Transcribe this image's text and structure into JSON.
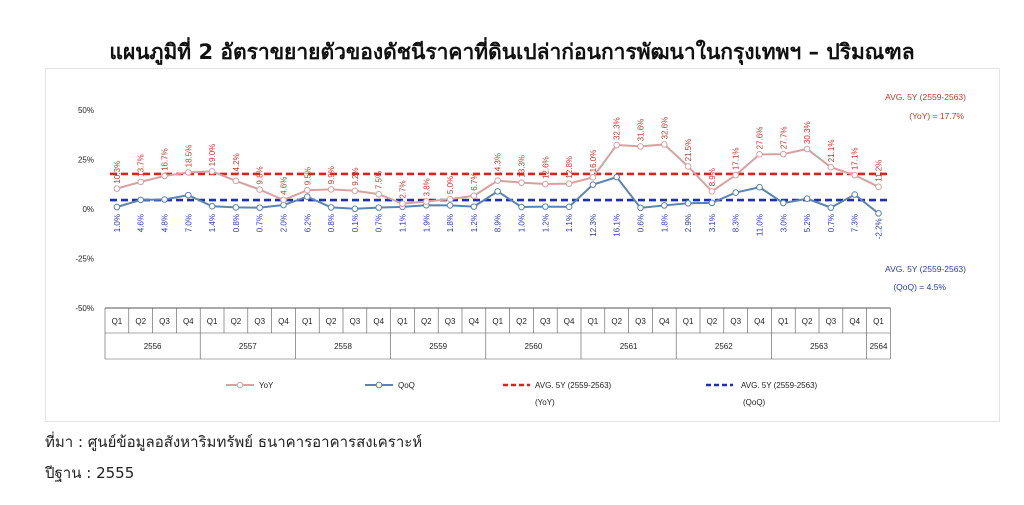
{
  "title": "แผนภูมิที่ 2 อัตราขยายตัวของดัชนีราคาที่ดินเปล่าก่อนการพัฒนาในกรุงเทพฯ – ปริมณฑล",
  "source_note": "ที่มา : ศูนย์ข้อมูลอสังหาริมทรัพย์ ธนาคารอาคารสงเคราะห์",
  "base_year_note": "ปีฐาน : 2555",
  "colors": {
    "yoy": "#d9a0a0",
    "qoq": "#5b84b0",
    "avg_yoy": "#e02020",
    "avg_qoq": "#1f2fb0",
    "yoy_label": "#c0392b",
    "qoq_label": "#2a3ca8"
  },
  "chart_data": {
    "type": "line",
    "ylim": [
      -50,
      50
    ],
    "yticks": [
      "50%",
      "25%",
      "0%",
      "-25%",
      "-50%"
    ],
    "ytick_values": [
      50,
      25,
      0,
      -25,
      -50
    ],
    "quarters": [
      "Q1",
      "Q2",
      "Q3",
      "Q4",
      "Q1",
      "Q2",
      "Q3",
      "Q4",
      "Q1",
      "Q2",
      "Q3",
      "Q4",
      "Q1",
      "Q2",
      "Q3",
      "Q4",
      "Q1",
      "Q2",
      "Q3",
      "Q4",
      "Q1",
      "Q2",
      "Q3",
      "Q4",
      "Q1",
      "Q2",
      "Q3",
      "Q4",
      "Q1",
      "Q2",
      "Q3",
      "Q4",
      "Q1"
    ],
    "years": [
      {
        "label": "2556",
        "count": 4
      },
      {
        "label": "2557",
        "count": 4
      },
      {
        "label": "2558",
        "count": 4
      },
      {
        "label": "2559",
        "count": 4
      },
      {
        "label": "2560",
        "count": 4
      },
      {
        "label": "2561",
        "count": 4
      },
      {
        "label": "2562",
        "count": 4
      },
      {
        "label": "2563",
        "count": 4
      },
      {
        "label": "2564",
        "count": 1
      }
    ],
    "series": [
      {
        "name": "YoY",
        "values": [
          10.3,
          13.7,
          16.7,
          18.5,
          19.0,
          14.2,
          9.8,
          4.6,
          9.5,
          9.9,
          9.2,
          7.5,
          2.7,
          3.8,
          5.0,
          6.7,
          14.3,
          13.3,
          12.6,
          12.8,
          16.0,
          32.3,
          31.6,
          32.6,
          21.5,
          8.9,
          17.1,
          27.6,
          27.7,
          30.3,
          21.1,
          17.1,
          11.2
        ],
        "labels": [
          "10.3%",
          "13.7%",
          "16.7%",
          "18.5%",
          "19.0%",
          "14.2%",
          "9.8%",
          "4.6%",
          "9.5%",
          "9.9%",
          "9.2%",
          "7.5%",
          "2.7%",
          "3.8%",
          "5.0%",
          "6.7%",
          "14.3%",
          "13.3%",
          "12.6%",
          "12.8%",
          "16.0%",
          "32.3%",
          "31.6%",
          "32.6%",
          "21.5%",
          "8.9%",
          "17.1%",
          "27.6%",
          "27.7%",
          "30.3%",
          "21.1%",
          "17.1%",
          "11.2%"
        ]
      },
      {
        "name": "QoQ",
        "values": [
          1.0,
          4.6,
          4.8,
          7.0,
          1.4,
          0.8,
          0.7,
          2.0,
          6.2,
          0.8,
          0.1,
          0.7,
          1.1,
          1.9,
          1.8,
          1.2,
          8.9,
          1.0,
          1.2,
          1.1,
          12.3,
          16.1,
          0.6,
          1.8,
          2.9,
          3.1,
          8.3,
          11.0,
          3.0,
          5.2,
          0.7,
          7.3,
          -2.2
        ],
        "labels": [
          "1.0%",
          "4.6%",
          "4.8%",
          "7.0%",
          "1.4%",
          "0.8%",
          "0.7%",
          "2.0%",
          "6.2%",
          "0.8%",
          "0.1%",
          "0.7%",
          "1.1%",
          "1.9%",
          "1.8%",
          "1.2%",
          "8.9%",
          "1.0%",
          "1.2%",
          "1.1%",
          "12.3%",
          "16.1%",
          "0.6%",
          "1.8%",
          "2.9%",
          "3.1%",
          "8.3%",
          "11.0%",
          "3.0%",
          "5.2%",
          "0.7%",
          "7.3%",
          "-2.2%"
        ]
      }
    ],
    "averages": [
      {
        "name": "AVG. 5Y (2559-2563) (YoY)",
        "value": 17.7,
        "annotation_line1": "AVG. 5Y (2559-2563)",
        "annotation_line2": "(YoY) = 17.7%"
      },
      {
        "name": "AVG. 5Y (2559-2563) (QoQ)",
        "value": 4.5,
        "annotation_line1": "AVG. 5Y (2559-2563)",
        "annotation_line2": "(QoQ) = 4.5%"
      }
    ],
    "legend": {
      "yoy": "YoY",
      "qoq": "QoQ",
      "avg_yoy_line1": "AVG. 5Y (2559-2563)",
      "avg_yoy_line2": "(YoY)",
      "avg_qoq_line1": "AVG. 5Y (2559-2563)",
      "avg_qoq_line2": "(QoQ)"
    }
  }
}
